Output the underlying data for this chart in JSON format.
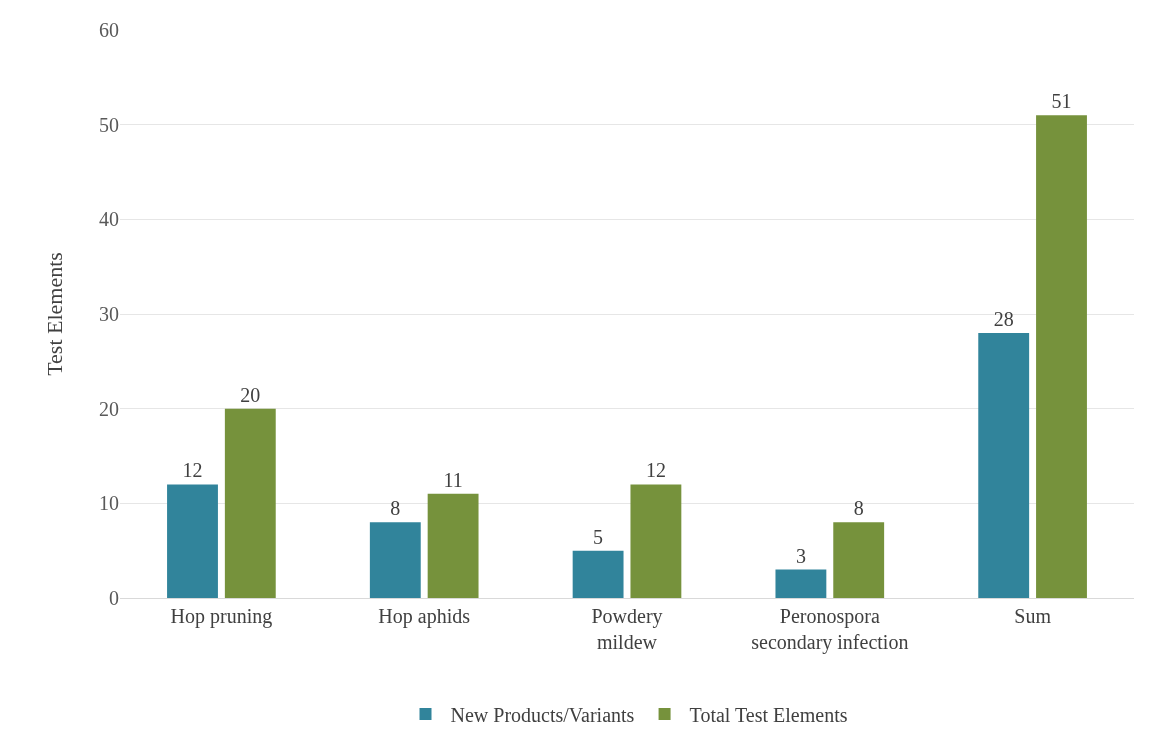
{
  "chart_data": {
    "type": "bar",
    "ylabel": "Test Elements",
    "categories": [
      "Hop pruning",
      "Hop aphids",
      "Powdery mildew",
      "Peronospora secondary infection",
      "Sum"
    ],
    "series": [
      {
        "name": "New Products/Variants",
        "color": "#31849b",
        "values": [
          12,
          8,
          5,
          3,
          28
        ]
      },
      {
        "name": "Total Test Elements",
        "color": "#76923c",
        "values": [
          20,
          11,
          12,
          8,
          51
        ]
      }
    ],
    "ylim": [
      0,
      60
    ],
    "yticks": [
      0,
      10,
      20,
      30,
      40,
      50,
      60
    ],
    "grid": "y",
    "legend": "bottom",
    "data_labels": true
  }
}
